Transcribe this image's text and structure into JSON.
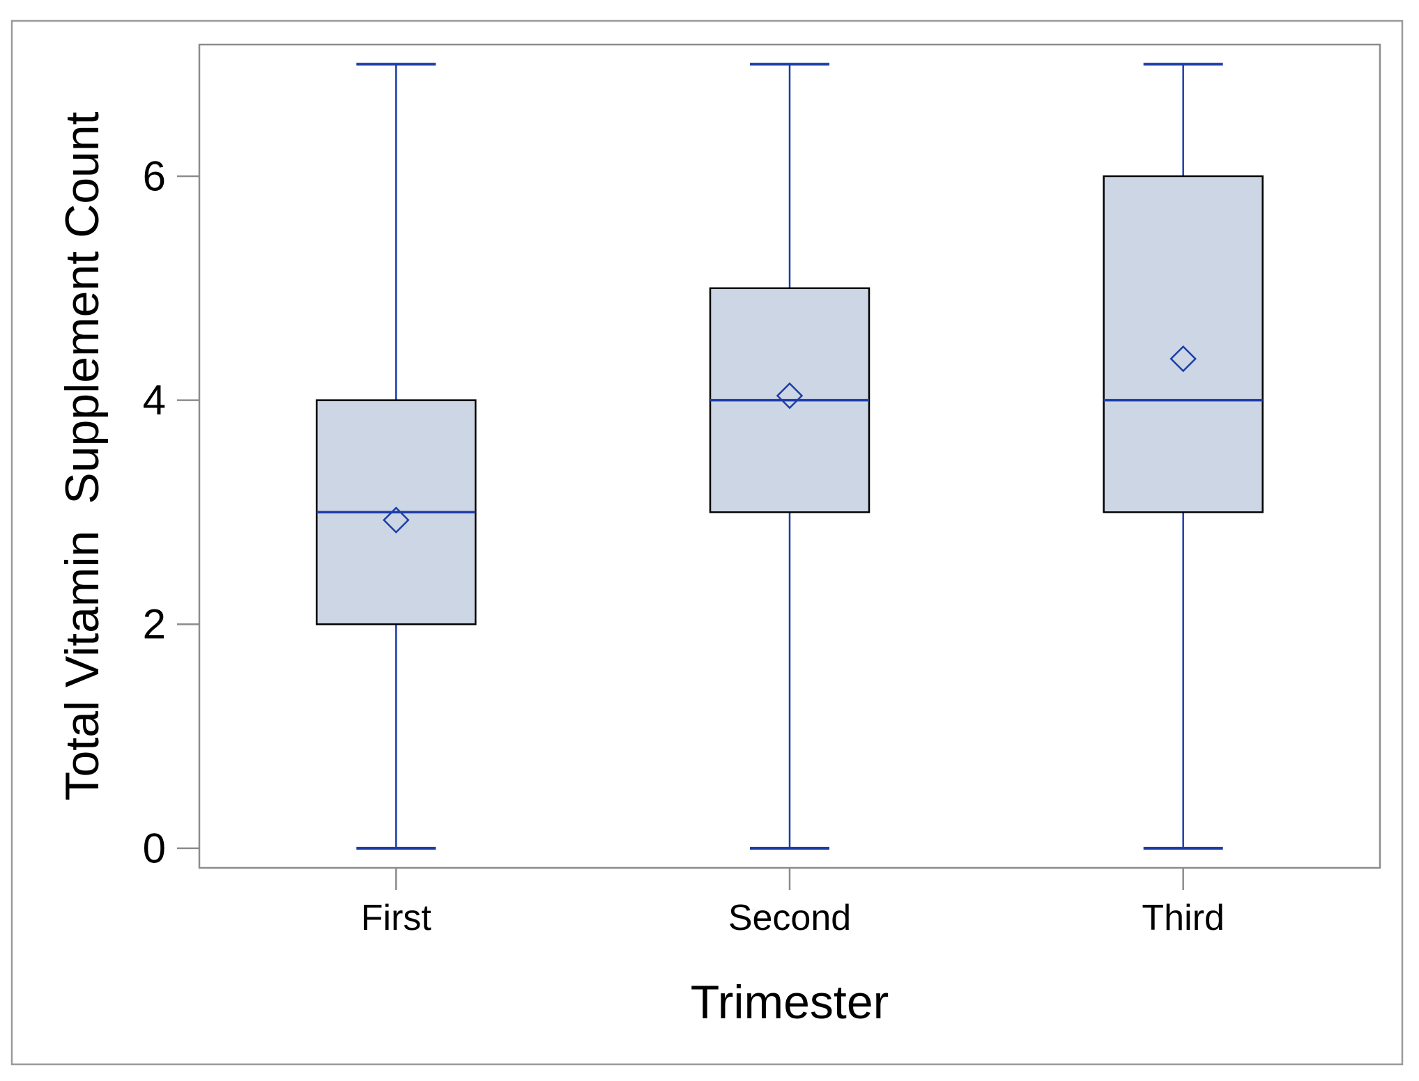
{
  "figure": {
    "background": "#ffffff",
    "border_color": "#9a9a9a",
    "plot_border_color": "#8c8c8c"
  },
  "chart_data": {
    "type": "boxplot",
    "title": "",
    "xlabel": "Trimester",
    "ylabel": "Total Vitamin  Supplement Count",
    "categories": [
      "First",
      "Second",
      "Third"
    ],
    "yticks": [
      0,
      2,
      4,
      6
    ],
    "ylim": [
      -0.175,
      7.175
    ],
    "grid": false,
    "legend": null,
    "mean_marker_shape": "diamond",
    "boxes": [
      {
        "category": "First",
        "whisker_low": 0,
        "q1": 2,
        "median": 3,
        "q3": 4,
        "whisker_high": 7,
        "mean": 2.93
      },
      {
        "category": "Second",
        "whisker_low": 0,
        "q1": 3,
        "median": 4,
        "q3": 5,
        "whisker_high": 7,
        "mean": 4.04
      },
      {
        "category": "Third",
        "whisker_low": 0,
        "q1": 3,
        "median": 4,
        "q3": 6,
        "whisker_high": 7,
        "mean": 4.37
      }
    ],
    "colors": {
      "box_fill": "#ccd6e4",
      "box_border": "#000000",
      "whisker": "#1d3da8",
      "median": "#1d3da8",
      "mean_marker": "#1d3da8",
      "axis": "#8c8c8c",
      "text": "#000000"
    }
  }
}
